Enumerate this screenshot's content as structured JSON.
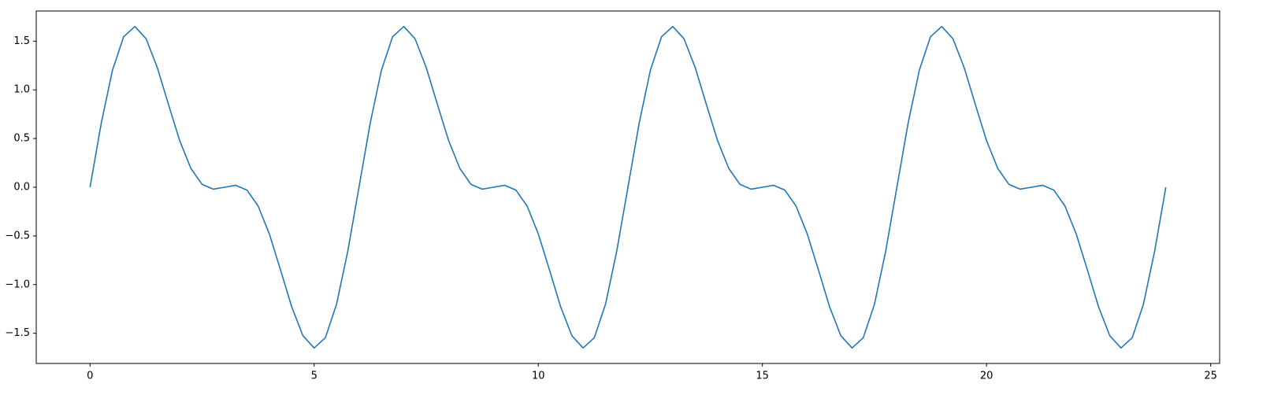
{
  "chart_data": {
    "type": "line",
    "x": [
      0,
      0.25,
      0.5,
      0.75,
      1,
      1.25,
      1.5,
      1.75,
      2,
      2.25,
      2.5,
      2.75,
      3,
      3.25,
      3.5,
      3.75,
      4,
      4.25,
      4.5,
      4.75,
      5,
      5.25,
      5.5,
      5.75,
      6,
      6.25,
      6.5,
      6.75,
      7,
      7.25,
      7.5,
      7.75,
      8,
      8.25,
      8.5,
      8.75,
      9,
      9.25,
      9.5,
      9.75,
      10,
      10.25,
      10.5,
      10.75,
      11,
      11.25,
      11.5,
      11.75,
      12,
      12.25,
      12.5,
      12.75,
      13,
      13.25,
      13.5,
      13.75,
      14,
      14.25,
      14.5,
      14.75,
      15,
      15.25,
      15.5,
      15.75,
      16,
      16.25,
      16.5,
      16.75,
      17,
      17.25,
      17.5,
      17.75,
      18,
      18.25,
      18.5,
      18.75,
      19,
      19.25,
      19.5,
      19.75,
      20,
      20.25,
      20.5,
      20.75,
      21,
      21.25,
      21.5,
      21.75,
      22,
      22.25,
      22.5,
      22.75,
      23,
      23.25,
      23.5,
      23.75,
      24
    ],
    "series": [
      {
        "color": "#1f77b4",
        "values": [
          0,
          0.657,
          1.201,
          1.546,
          1.651,
          1.526,
          1.23,
          0.85,
          0.479,
          0.193,
          0.029,
          -0.02,
          0,
          0.02,
          -0.029,
          -0.193,
          -0.479,
          -0.85,
          -1.23,
          -1.526,
          -1.651,
          -1.546,
          -1.201,
          -0.657,
          0,
          0.657,
          1.201,
          1.546,
          1.651,
          1.526,
          1.23,
          0.85,
          0.479,
          0.193,
          0.029,
          -0.02,
          0,
          0.02,
          -0.029,
          -0.193,
          -0.479,
          -0.85,
          -1.23,
          -1.526,
          -1.651,
          -1.546,
          -1.201,
          -0.657,
          0,
          0.657,
          1.201,
          1.546,
          1.651,
          1.526,
          1.23,
          0.85,
          0.479,
          0.193,
          0.029,
          -0.02,
          0,
          0.02,
          -0.029,
          -0.193,
          -0.479,
          -0.85,
          -1.23,
          -1.526,
          -1.651,
          -1.546,
          -1.201,
          -0.657,
          0,
          0.657,
          1.201,
          1.546,
          1.651,
          1.526,
          1.23,
          0.85,
          0.479,
          0.193,
          0.029,
          -0.02,
          0,
          0.02,
          -0.029,
          -0.193,
          -0.479,
          -0.85,
          -1.23,
          -1.526,
          -1.651,
          -1.546,
          -1.201,
          -0.657,
          0
        ]
      }
    ],
    "xlim": [
      -1.2,
      25.2
    ],
    "xticks": [
      0,
      5,
      10,
      15,
      20,
      25
    ],
    "ylim": [
      -1.81,
      1.81
    ],
    "yticks": [
      {
        "value": -1.5,
        "label": "−1.5"
      },
      {
        "value": -1,
        "label": "−1.0"
      },
      {
        "value": -0.5,
        "label": "−0.5"
      },
      {
        "value": 0,
        "label": "0.0"
      },
      {
        "value": 0.5,
        "label": "0.5"
      },
      {
        "value": 1,
        "label": "1.0"
      },
      {
        "value": 1.5,
        "label": "1.5"
      }
    ],
    "grid": false
  }
}
